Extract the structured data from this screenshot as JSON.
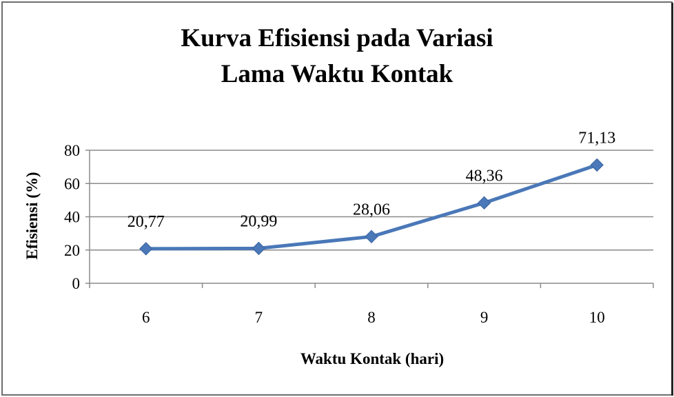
{
  "chart_data": {
    "type": "line",
    "title_line1": "Kurva Efisiensi pada Variasi",
    "title_line2": "Lama Waktu Kontak",
    "xlabel": "Waktu Kontak (hari)",
    "ylabel": "Efisiensi (%)",
    "categories": [
      "6",
      "7",
      "8",
      "9",
      "10"
    ],
    "series": [
      {
        "values": [
          20.77,
          20.99,
          28.06,
          48.36,
          71.13
        ],
        "color": "#4a78b8"
      }
    ],
    "data_labels": [
      "20,77",
      "20,99",
      "28,06",
      "48,36",
      "71,13"
    ],
    "y_ticks": [
      "0",
      "20",
      "40",
      "60",
      "80"
    ],
    "ylim": [
      0,
      80
    ],
    "grid": true,
    "legend": "none",
    "marker": "diamond"
  }
}
